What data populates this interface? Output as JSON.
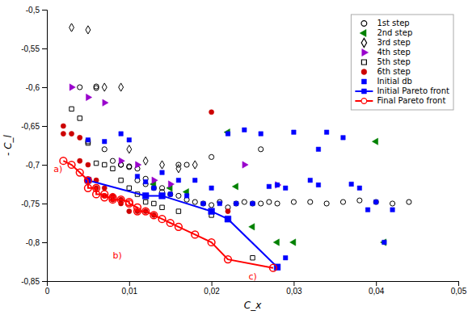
{
  "chart_data": {
    "type": "scatter",
    "xlabel": "C_x",
    "ylabel": "- C_l",
    "xlim": [
      0,
      0.05
    ],
    "ylim": [
      -0.85,
      -0.5
    ],
    "xticks": [
      0,
      {
        "value": 0.01,
        "label": "0,01"
      },
      {
        "value": 0.02,
        "label": "0,02"
      },
      {
        "value": 0.03,
        "label": "0,03"
      },
      {
        "value": 0.04,
        "label": "0,04"
      },
      {
        "value": 0.05,
        "label": "0,05"
      }
    ],
    "yticks": [
      {
        "value": -0.85,
        "label": "-0,85"
      },
      {
        "value": -0.8,
        "label": "-0,8"
      },
      {
        "value": -0.75,
        "label": "-0,75"
      },
      {
        "value": -0.7,
        "label": "-0,7"
      },
      {
        "value": -0.65,
        "label": "-0,65"
      },
      {
        "value": -0.6,
        "label": "-0,6"
      },
      {
        "value": -0.55,
        "label": "-0,55"
      },
      {
        "value": -0.5,
        "label": "-0,5"
      }
    ],
    "grid": false,
    "legend": "upper right",
    "series": [
      {
        "name": "1st step",
        "color": "black",
        "marker": "circle-open",
        "x": [
          0.004,
          0.006,
          0.006,
          0.007,
          0.008,
          0.009,
          0.009,
          0.01,
          0.01,
          0.011,
          0.011,
          0.012,
          0.012,
          0.013,
          0.014,
          0.014,
          0.015,
          0.016,
          0.017,
          0.018,
          0.019,
          0.02,
          0.021,
          0.022,
          0.023,
          0.024,
          0.025,
          0.026,
          0.027,
          0.028,
          0.03,
          0.032,
          0.034,
          0.036,
          0.038,
          0.04,
          0.042,
          0.044,
          0.016,
          0.017,
          0.02,
          0.026
        ],
        "values": [
          -0.6,
          -0.599,
          -0.601,
          -0.68,
          -0.695,
          -0.7,
          -0.7,
          -0.702,
          -0.703,
          -0.705,
          -0.72,
          -0.718,
          -0.725,
          -0.73,
          -0.73,
          -0.735,
          -0.738,
          -0.74,
          -0.745,
          -0.748,
          -0.75,
          -0.752,
          -0.748,
          -0.755,
          -0.75,
          -0.748,
          -0.75,
          -0.75,
          -0.748,
          -0.75,
          -0.748,
          -0.748,
          -0.75,
          -0.748,
          -0.746,
          -0.748,
          -0.75,
          -0.748,
          -0.7,
          -0.7,
          -0.69,
          -0.68
        ]
      },
      {
        "name": "2nd step",
        "color": "green",
        "marker": "triangle-left",
        "x": [
          0.013,
          0.015,
          0.017,
          0.022,
          0.023,
          0.025,
          0.028,
          0.03,
          0.04,
          0.041
        ],
        "values": [
          -0.725,
          -0.73,
          -0.735,
          -0.658,
          -0.728,
          -0.78,
          -0.8,
          -0.8,
          -0.67,
          -0.8
        ]
      },
      {
        "name": "3rd step",
        "color": "black",
        "marker": "diamond-open",
        "x": [
          0.003,
          0.005,
          0.007,
          0.009,
          0.01,
          0.012,
          0.014,
          0.016,
          0.018
        ],
        "values": [
          -0.523,
          -0.526,
          -0.6,
          -0.6,
          -0.68,
          -0.695,
          -0.7,
          -0.705,
          -0.7
        ]
      },
      {
        "name": "4th step",
        "color": "#9900cc",
        "marker": "triangle-right",
        "x": [
          0.003,
          0.005,
          0.007,
          0.009,
          0.011,
          0.013,
          0.015,
          0.024,
          0.028
        ],
        "values": [
          -0.6,
          -0.613,
          -0.62,
          -0.695,
          -0.7,
          -0.72,
          -0.725,
          -0.7,
          -0.726
        ]
      },
      {
        "name": "5th step",
        "color": "black",
        "marker": "square-open",
        "x": [
          0.003,
          0.004,
          0.005,
          0.005,
          0.006,
          0.007,
          0.008,
          0.009,
          0.01,
          0.011,
          0.012,
          0.013,
          0.014,
          0.016,
          0.02,
          0.025
        ],
        "values": [
          -0.628,
          -0.64,
          -0.67,
          -0.672,
          -0.698,
          -0.7,
          -0.705,
          -0.72,
          -0.73,
          -0.738,
          -0.748,
          -0.75,
          -0.755,
          -0.76,
          -0.765,
          -0.82
        ]
      },
      {
        "name": "6th step",
        "color": "#cc0000",
        "marker": "circle",
        "x": [
          0.002,
          0.002,
          0.003,
          0.004,
          0.004,
          0.005,
          0.005,
          0.006,
          0.006,
          0.007,
          0.007,
          0.008,
          0.008,
          0.009,
          0.009,
          0.01,
          0.011,
          0.012,
          0.013,
          0.02,
          0.022
        ],
        "values": [
          -0.65,
          -0.66,
          -0.66,
          -0.665,
          -0.695,
          -0.7,
          -0.72,
          -0.72,
          -0.73,
          -0.73,
          -0.74,
          -0.74,
          -0.745,
          -0.745,
          -0.75,
          -0.76,
          -0.76,
          -0.76,
          -0.765,
          -0.632,
          -0.76
        ]
      },
      {
        "name": "Initial db",
        "color": "blue",
        "marker": "square",
        "x": [
          0.005,
          0.007,
          0.009,
          0.01,
          0.011,
          0.012,
          0.013,
          0.014,
          0.015,
          0.016,
          0.017,
          0.018,
          0.019,
          0.02,
          0.021,
          0.022,
          0.023,
          0.024,
          0.025,
          0.026,
          0.027,
          0.028,
          0.029,
          0.03,
          0.032,
          0.033,
          0.034,
          0.036,
          0.037,
          0.038,
          0.039,
          0.04,
          0.041,
          0.042,
          0.029,
          0.033
        ],
        "values": [
          -0.668,
          -0.67,
          -0.66,
          -0.668,
          -0.715,
          -0.722,
          -0.73,
          -0.71,
          -0.738,
          -0.72,
          -0.74,
          -0.72,
          -0.75,
          -0.73,
          -0.75,
          -0.66,
          -0.75,
          -0.655,
          -0.75,
          -0.66,
          -0.728,
          -0.726,
          -0.73,
          -0.658,
          -0.72,
          -0.726,
          -0.658,
          -0.665,
          -0.725,
          -0.73,
          -0.758,
          -0.748,
          -0.8,
          -0.758,
          -0.82,
          -0.68
        ]
      },
      {
        "name": "Initial Pareto front",
        "type": "line",
        "line_style": "solid",
        "color": "blue",
        "marker": "square",
        "x": [
          0.005,
          0.012,
          0.014,
          0.02,
          0.022,
          0.028
        ],
        "values": [
          -0.72,
          -0.74,
          -0.74,
          -0.76,
          -0.77,
          -0.832
        ]
      },
      {
        "name": "Final Pareto front",
        "type": "line",
        "line_style": "solid",
        "color": "red",
        "marker": "circle-open",
        "x": [
          0.002,
          0.003,
          0.004,
          0.005,
          0.005,
          0.006,
          0.006,
          0.007,
          0.007,
          0.008,
          0.008,
          0.009,
          0.01,
          0.01,
          0.011,
          0.011,
          0.012,
          0.013,
          0.014,
          0.015,
          0.016,
          0.018,
          0.02,
          0.022,
          0.0275
        ],
        "values": [
          -0.695,
          -0.7,
          -0.71,
          -0.72,
          -0.73,
          -0.73,
          -0.738,
          -0.738,
          -0.742,
          -0.742,
          -0.745,
          -0.745,
          -0.748,
          -0.75,
          -0.755,
          -0.76,
          -0.76,
          -0.765,
          -0.77,
          -0.775,
          -0.78,
          -0.79,
          -0.8,
          -0.822,
          -0.833
        ]
      }
    ],
    "annotations": [
      {
        "text": "a)",
        "x": 0.0008,
        "y": -0.706,
        "color": "red"
      },
      {
        "text": "b)",
        "x": 0.008,
        "y": -0.818,
        "color": "red"
      },
      {
        "text": "c)",
        "x": 0.0245,
        "y": -0.845,
        "color": "red"
      }
    ]
  }
}
